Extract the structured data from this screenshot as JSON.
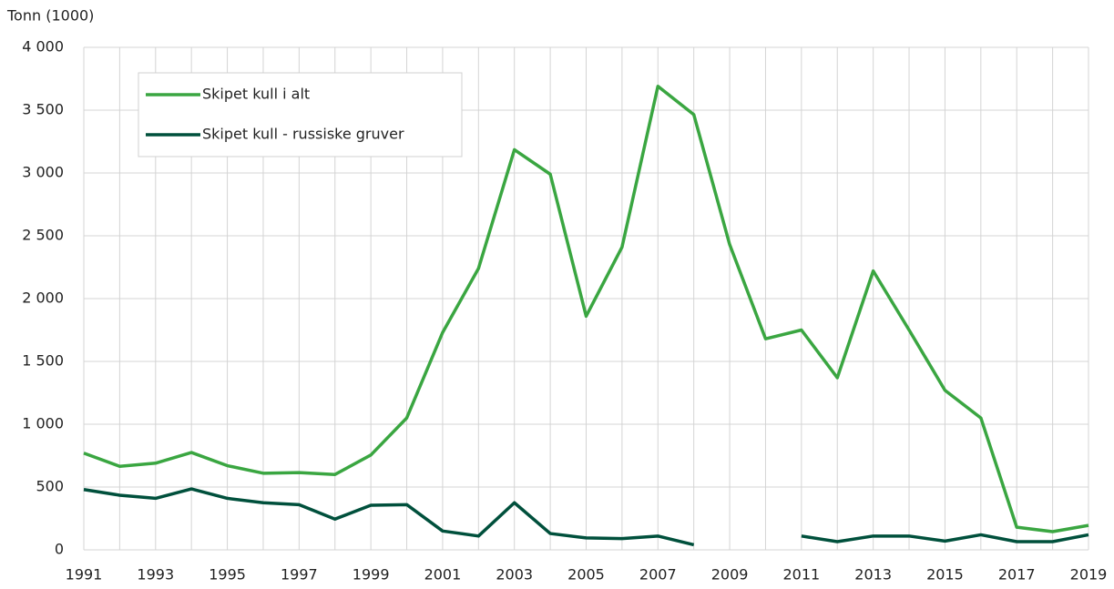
{
  "chart_data": {
    "type": "line",
    "y_axis_label": "Tonn (1000)",
    "x": [
      1991,
      1992,
      1993,
      1994,
      1995,
      1996,
      1997,
      1998,
      1999,
      2000,
      2001,
      2002,
      2003,
      2004,
      2005,
      2006,
      2007,
      2008,
      2009,
      2010,
      2011,
      2012,
      2013,
      2014,
      2015,
      2016,
      2017,
      2018,
      2019
    ],
    "series": [
      {
        "name": "Skipet kull i alt",
        "color": "#3aa641",
        "values": [
          770,
          665,
          690,
          775,
          670,
          610,
          615,
          600,
          755,
          1050,
          1730,
          2240,
          3185,
          2990,
          1860,
          2410,
          3690,
          3465,
          2430,
          1680,
          1750,
          1370,
          2220,
          1750,
          1270,
          1050,
          180,
          145,
          195
        ]
      },
      {
        "name": "Skipet kull - russiske gruver",
        "color": "#00503c",
        "values": [
          480,
          435,
          410,
          485,
          410,
          375,
          360,
          245,
          355,
          360,
          150,
          110,
          375,
          130,
          95,
          90,
          110,
          40,
          null,
          null,
          110,
          65,
          110,
          110,
          70,
          120,
          65,
          65,
          120
        ]
      }
    ],
    "xlim": [
      1991,
      2019
    ],
    "xticks": [
      1991,
      1993,
      1995,
      1997,
      1999,
      2001,
      2003,
      2005,
      2007,
      2009,
      2011,
      2013,
      2015,
      2017,
      2019
    ],
    "ylim": [
      0,
      4000
    ],
    "yticks": [
      0,
      500,
      {
        "value": 1000,
        "label": "1 000"
      },
      {
        "value": 1500,
        "label": "1 500"
      },
      {
        "value": 2000,
        "label": "2 000"
      },
      {
        "value": 2500,
        "label": "2 500"
      },
      {
        "value": 3000,
        "label": "3 000"
      },
      {
        "value": 3500,
        "label": "3 500"
      },
      {
        "value": 4000,
        "label": "4 000"
      }
    ],
    "grid": true,
    "legend": "upper-left"
  }
}
